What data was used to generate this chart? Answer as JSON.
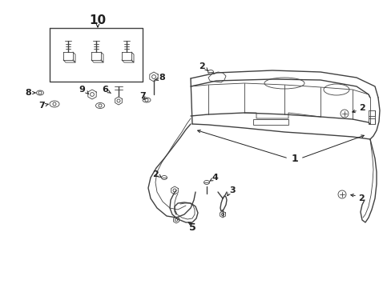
{
  "bg_color": "#ffffff",
  "line_color": "#404040",
  "text_color": "#202020",
  "fig_width": 4.89,
  "fig_height": 3.6,
  "dpi": 100,
  "lw_main": 1.0,
  "lw_thin": 0.6,
  "lw_thick": 1.4
}
